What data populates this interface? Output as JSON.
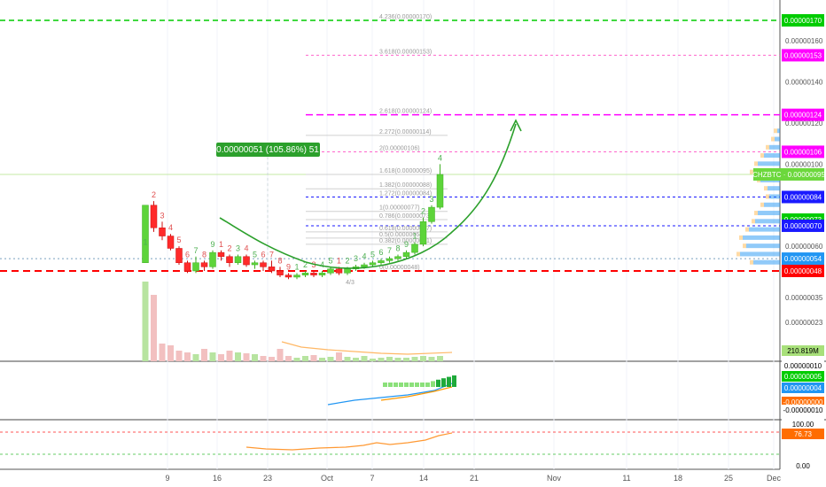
{
  "chart_data": {
    "type": "candlestick",
    "symbol": "CHZBTC",
    "price_tag": "CHZBTC · 0.00000095",
    "measure_label": "0.00000051 (105.86%) 51",
    "x_ticks": [
      "9",
      "16",
      "23",
      "Oct",
      "7",
      "14",
      "21",
      "Nov",
      "11",
      "18",
      "25",
      "Dec"
    ],
    "y_ticks": [
      "0.00000170",
      "0.00000160",
      "0.00000153",
      "0.00000140",
      "0.00000124",
      "0.00000120",
      "0.00000106",
      "0.00000100",
      "0.00000095",
      "0.00000084",
      "0.00000073",
      "0.00000070",
      "0.00000060",
      "0.00000054",
      "0.00000048",
      "0.00000035",
      "0.00000023",
      "0.00000010"
    ],
    "price_labels": [
      {
        "text": "0.00000170",
        "color": "#00cc00"
      },
      {
        "text": "0.00000153",
        "color": "#ff00ff"
      },
      {
        "text": "0.00000124",
        "color": "#ff00ff"
      },
      {
        "text": "0.00000106",
        "color": "#ff00ff"
      },
      {
        "text": "0.00000084",
        "color": "#1a1aff"
      },
      {
        "text": "0.00000073",
        "color": "#00cc00"
      },
      {
        "text": "0.00000070",
        "color": "#1a1aff"
      },
      {
        "text": "0.00000054",
        "color": "#2196f3"
      },
      {
        "text": "0.00000048",
        "color": "#ff0000"
      }
    ],
    "fib_levels": [
      {
        "text": "4.236(0.00000170)",
        "value": 170
      },
      {
        "text": "3.618(0.00000153)",
        "value": 153
      },
      {
        "text": "2.618(0.00000124)",
        "value": 124
      },
      {
        "text": "2.272(0.00000114)",
        "value": 114
      },
      {
        "text": "2(0.00000106)",
        "value": 106
      },
      {
        "text": "1.618(0.00000095)",
        "value": 95
      },
      {
        "text": "1.382(0.00000088)",
        "value": 88
      },
      {
        "text": "1.272(0.00000084)",
        "value": 84
      },
      {
        "text": "1(0.00000077)",
        "value": 77
      },
      {
        "text": "0.786(0.00000073)",
        "value": 73
      },
      {
        "text": "0.618(0.00000067)",
        "value": 67
      },
      {
        "text": "0.5(0.00000064)",
        "value": 64
      },
      {
        "text": "0.382(0.00000061)",
        "value": 61
      },
      {
        "text": "0(0.00000048)",
        "value": 48
      }
    ],
    "candles": [
      [
        52,
        59,
        80,
        52,
        "up"
      ],
      [
        80,
        82,
        69,
        67,
        "down"
      ],
      [
        69,
        72,
        65,
        63,
        "down"
      ],
      [
        65,
        66,
        59,
        58,
        "down"
      ],
      [
        59,
        60,
        52,
        51,
        "down"
      ],
      [
        52,
        53,
        48,
        47,
        "down"
      ],
      [
        48,
        55,
        52,
        47,
        "up"
      ],
      [
        52,
        53,
        50,
        48,
        "down"
      ],
      [
        50,
        58,
        57,
        49,
        "up"
      ],
      [
        57,
        58,
        55,
        53,
        "down"
      ],
      [
        55,
        56,
        52,
        50,
        "down"
      ],
      [
        52,
        56,
        55,
        51,
        "up"
      ],
      [
        55,
        56,
        51,
        50,
        "down"
      ],
      [
        51,
        53,
        52,
        49,
        "up"
      ],
      [
        52,
        53,
        50,
        48,
        "down"
      ],
      [
        50,
        53,
        48,
        47,
        "down"
      ],
      [
        48,
        50,
        46,
        45,
        "down"
      ],
      [
        46,
        47,
        45,
        44,
        "down"
      ],
      [
        45,
        47,
        46,
        44,
        "up"
      ],
      [
        46,
        48,
        47,
        45,
        "up"
      ],
      [
        47,
        48,
        46,
        45,
        "down"
      ],
      [
        46,
        48,
        47,
        45,
        "up"
      ],
      [
        47,
        50,
        49,
        46,
        "up"
      ],
      [
        49,
        50,
        47,
        46,
        "down"
      ],
      [
        47,
        50,
        49,
        46,
        "up"
      ],
      [
        49,
        51,
        50,
        48,
        "up"
      ],
      [
        50,
        52,
        51,
        49,
        "up"
      ],
      [
        51,
        53,
        52,
        50,
        "up"
      ],
      [
        52,
        54,
        53,
        51,
        "up"
      ],
      [
        53,
        55,
        54,
        52,
        "up"
      ],
      [
        54,
        56,
        55,
        53,
        "up"
      ],
      [
        55,
        58,
        57,
        54,
        "up"
      ],
      [
        57,
        62,
        61,
        56,
        "up"
      ],
      [
        61,
        74,
        72,
        60,
        "up"
      ],
      [
        72,
        80,
        79,
        71,
        "up"
      ],
      [
        79,
        100,
        95,
        78,
        "up"
      ]
    ],
    "volume_axis_label": "210.819M",
    "osc1_labels": [
      {
        "text": "0.00000010",
        "color": "#ffffff",
        "fg": "#000000"
      },
      {
        "text": "0.00000005",
        "color": "#00cc00",
        "fg": "#ffffff"
      },
      {
        "text": "0.00000004",
        "color": "#2196f3",
        "fg": "#ffffff"
      },
      {
        "text": "-0.00000000",
        "color": "#ff6d00",
        "fg": "#ffffff"
      },
      {
        "text": "-0.00000010",
        "color": "#ffffff",
        "fg": "#000000"
      }
    ],
    "osc2_labels": [
      {
        "text": "100.00",
        "color": "#ffffff",
        "fg": "#000000"
      },
      {
        "text": "76.73",
        "color": "#ff6d00",
        "fg": "#ffffff"
      },
      {
        "text": "0.00",
        "color": "#ffffff",
        "fg": "#000000"
      }
    ],
    "count_labels": [
      "1",
      "2",
      "3",
      "4",
      "5",
      "6",
      "7",
      "8",
      "9",
      "1",
      "2",
      "3",
      "4",
      "5",
      "6",
      "7",
      "8",
      "9",
      "1",
      "2",
      "3",
      "4",
      "5",
      "1",
      "2",
      "3",
      "4",
      "5",
      "6",
      "7",
      "8",
      "9",
      "1",
      "2",
      "3",
      "4"
    ]
  }
}
